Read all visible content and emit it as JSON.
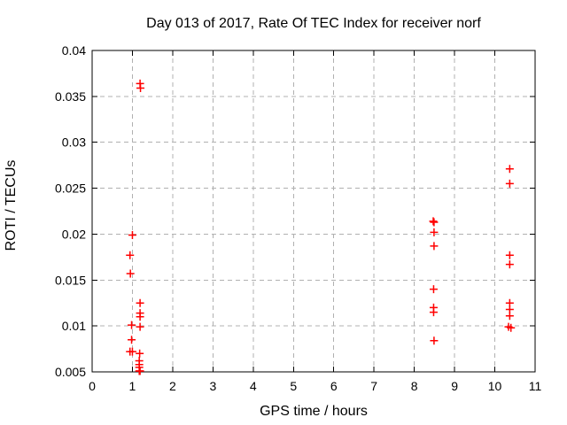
{
  "page": {
    "background_color": "#ffffff"
  },
  "chart_data": {
    "type": "scatter",
    "title": "Day 013 of 2017, Rate Of TEC Index for receiver norf",
    "xlabel": "GPS time / hours",
    "ylabel": "ROTI / TECUs",
    "xlim": [
      0,
      11
    ],
    "ylim": [
      0.005,
      0.04
    ],
    "x_ticks": [
      0,
      1,
      2,
      3,
      4,
      5,
      6,
      7,
      8,
      9,
      10,
      11
    ],
    "x_tick_labels": [
      "0",
      "1",
      "2",
      "3",
      "4",
      "5",
      "6",
      "7",
      "8",
      "9",
      "10",
      "11"
    ],
    "y_ticks": [
      0.005,
      0.01,
      0.015,
      0.02,
      0.025,
      0.03,
      0.035,
      0.04
    ],
    "y_tick_labels": [
      "0.005",
      "0.01",
      "0.015",
      "0.02",
      "0.025",
      "0.03",
      "0.035",
      "0.04"
    ],
    "grid": true,
    "grid_style": "dashed",
    "legend": "none",
    "marker": "plus",
    "marker_color": "#ff0000",
    "grid_color": "#b0b0b0",
    "axis_color": "#000000",
    "series": [
      {
        "name": "ROTI",
        "points": [
          [
            1.0,
            0.0199
          ],
          [
            0.94,
            0.0177
          ],
          [
            0.95,
            0.0157
          ],
          [
            0.98,
            0.0101
          ],
          [
            0.98,
            0.0085
          ],
          [
            0.94,
            0.0072
          ],
          [
            1.0,
            0.0072
          ],
          [
            1.19,
            0.0364
          ],
          [
            1.2,
            0.0359
          ],
          [
            1.19,
            0.0125
          ],
          [
            1.19,
            0.0114
          ],
          [
            1.19,
            0.011
          ],
          [
            1.19,
            0.0099
          ],
          [
            1.18,
            0.007
          ],
          [
            1.17,
            0.0062
          ],
          [
            1.17,
            0.0058
          ],
          [
            1.17,
            0.0055
          ],
          [
            1.17,
            0.0051
          ],
          [
            1.19,
            0.0051
          ],
          [
            8.47,
            0.0214
          ],
          [
            8.49,
            0.0213
          ],
          [
            8.49,
            0.0202
          ],
          [
            8.49,
            0.0187
          ],
          [
            8.48,
            0.014
          ],
          [
            8.48,
            0.012
          ],
          [
            8.48,
            0.0115
          ],
          [
            8.49,
            0.0084
          ],
          [
            10.37,
            0.0271
          ],
          [
            10.37,
            0.0255
          ],
          [
            10.37,
            0.0177
          ],
          [
            10.37,
            0.0167
          ],
          [
            10.37,
            0.0125
          ],
          [
            10.37,
            0.0118
          ],
          [
            10.37,
            0.0111
          ],
          [
            10.34,
            0.0099
          ],
          [
            10.4,
            0.0098
          ]
        ]
      }
    ]
  }
}
